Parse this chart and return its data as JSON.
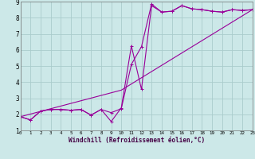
{
  "xlabel": "Windchill (Refroidissement éolien,°C)",
  "background_color": "#cce8e8",
  "grid_color": "#aacccc",
  "line_color": "#990099",
  "xlim": [
    0,
    23
  ],
  "ylim": [
    1,
    9
  ],
  "xticks": [
    0,
    1,
    2,
    3,
    4,
    5,
    6,
    7,
    8,
    9,
    10,
    11,
    12,
    13,
    14,
    15,
    16,
    17,
    18,
    19,
    20,
    21,
    22,
    23
  ],
  "yticks": [
    1,
    2,
    3,
    4,
    5,
    6,
    7,
    8,
    9
  ],
  "series1_x": [
    0,
    1,
    2,
    3,
    4,
    5,
    6,
    7,
    8,
    9,
    10,
    11,
    12,
    13,
    14,
    15,
    16,
    17,
    18,
    19,
    20,
    21,
    22,
    23
  ],
  "series1_y": [
    1.85,
    1.65,
    2.2,
    2.3,
    2.3,
    2.25,
    2.3,
    1.95,
    2.3,
    2.1,
    2.35,
    5.1,
    6.2,
    8.85,
    8.35,
    8.4,
    8.75,
    8.55,
    8.5,
    8.4,
    8.35,
    8.5,
    8.45,
    8.5
  ],
  "series2_x": [
    0,
    1,
    2,
    3,
    4,
    5,
    6,
    7,
    8,
    9,
    10,
    11,
    12,
    13,
    14,
    15,
    16,
    17,
    18,
    19,
    20,
    21,
    22,
    23
  ],
  "series2_y": [
    1.85,
    1.65,
    2.2,
    2.3,
    2.3,
    2.25,
    2.3,
    1.95,
    2.3,
    1.55,
    2.4,
    6.25,
    3.55,
    8.75,
    8.35,
    8.4,
    8.75,
    8.55,
    8.5,
    8.4,
    8.35,
    8.5,
    8.45,
    8.5
  ],
  "series3_x": [
    0,
    10,
    23
  ],
  "series3_y": [
    1.85,
    3.5,
    8.5
  ]
}
